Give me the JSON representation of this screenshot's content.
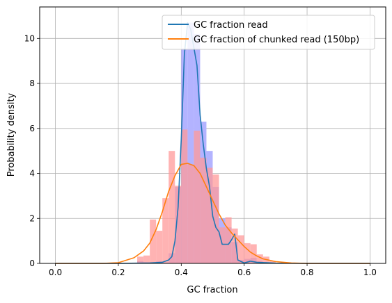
{
  "chart_data": {
    "type": "line",
    "xlabel": "GC fraction",
    "ylabel": "Probability density",
    "xlim": [
      -0.05,
      1.05
    ],
    "ylim": [
      0,
      11.4
    ],
    "grid": true,
    "legend_position": "top-right",
    "x_ticks": [
      0.0,
      0.2,
      0.4,
      0.6,
      0.8,
      1.0
    ],
    "x_tick_labels": [
      "0.0",
      "0.2",
      "0.4",
      "0.6",
      "0.8",
      "1.0"
    ],
    "y_ticks": [
      0,
      2,
      4,
      6,
      8,
      10
    ],
    "y_tick_labels": [
      "0",
      "2",
      "4",
      "6",
      "8",
      "10"
    ],
    "series": [
      {
        "name": "GC fraction read",
        "color": "#1f77b4",
        "x": [
          0.0,
          0.2,
          0.3,
          0.34,
          0.36,
          0.37,
          0.38,
          0.39,
          0.4,
          0.41,
          0.42,
          0.43,
          0.44,
          0.45,
          0.46,
          0.47,
          0.48,
          0.49,
          0.5,
          0.51,
          0.52,
          0.53,
          0.54,
          0.55,
          0.56,
          0.57,
          0.58,
          0.6,
          0.62,
          0.64,
          0.7,
          0.8,
          1.0
        ],
        "y": [
          0.0,
          0.0,
          0.02,
          0.05,
          0.15,
          0.3,
          1.0,
          2.5,
          5.5,
          9.3,
          10.7,
          10.4,
          9.6,
          8.8,
          6.6,
          5.3,
          4.2,
          3.4,
          2.1,
          1.6,
          1.4,
          0.85,
          0.85,
          0.85,
          1.05,
          1.3,
          0.15,
          0.02,
          0.1,
          0.05,
          0.01,
          0.0,
          0.0
        ]
      },
      {
        "name": "GC fraction of chunked read (150bp)",
        "color": "#ff7f0e",
        "x": [
          0.0,
          0.15,
          0.2,
          0.25,
          0.28,
          0.3,
          0.32,
          0.34,
          0.36,
          0.38,
          0.4,
          0.42,
          0.44,
          0.46,
          0.48,
          0.5,
          0.52,
          0.54,
          0.56,
          0.58,
          0.6,
          0.62,
          0.64,
          0.66,
          0.7,
          0.75,
          0.8,
          0.9,
          1.0
        ],
        "y": [
          0.0,
          0.0,
          0.03,
          0.25,
          0.55,
          0.9,
          1.5,
          2.3,
          3.2,
          3.9,
          4.4,
          4.45,
          4.35,
          4.0,
          3.4,
          2.8,
          2.2,
          1.7,
          1.35,
          1.05,
          0.75,
          0.5,
          0.33,
          0.2,
          0.08,
          0.02,
          0.0,
          0.0,
          0.0
        ]
      }
    ],
    "histograms": [
      {
        "color": "#b3b3ff",
        "bin_edges": [
          0.26,
          0.28,
          0.3,
          0.32,
          0.34,
          0.36,
          0.38,
          0.4,
          0.42,
          0.44,
          0.46,
          0.48,
          0.5,
          0.52,
          0.54,
          0.56,
          0.58,
          0.6,
          0.62,
          0.64,
          0.66
        ],
        "values": [
          0.1,
          0.05,
          0.05,
          0.1,
          0.05,
          0.45,
          3.4,
          9.55,
          10.7,
          10.2,
          6.3,
          5.0,
          3.4,
          2.0,
          1.6,
          0.95,
          0.15,
          0.2,
          0.25,
          0.1
        ]
      },
      {
        "color": "#ff9a9a",
        "bin_edges": [
          0.26,
          0.28,
          0.3,
          0.32,
          0.34,
          0.36,
          0.38,
          0.4,
          0.42,
          0.44,
          0.46,
          0.48,
          0.5,
          0.52,
          0.54,
          0.56,
          0.58,
          0.6,
          0.62,
          0.64,
          0.66,
          0.68,
          0.7
        ],
        "values": [
          0.3,
          0.35,
          1.95,
          1.45,
          2.9,
          5.0,
          3.45,
          5.95,
          4.4,
          5.9,
          4.7,
          4.25,
          3.95,
          1.6,
          2.05,
          1.55,
          1.25,
          0.9,
          0.85,
          0.4,
          0.3,
          0.1
        ]
      }
    ]
  }
}
